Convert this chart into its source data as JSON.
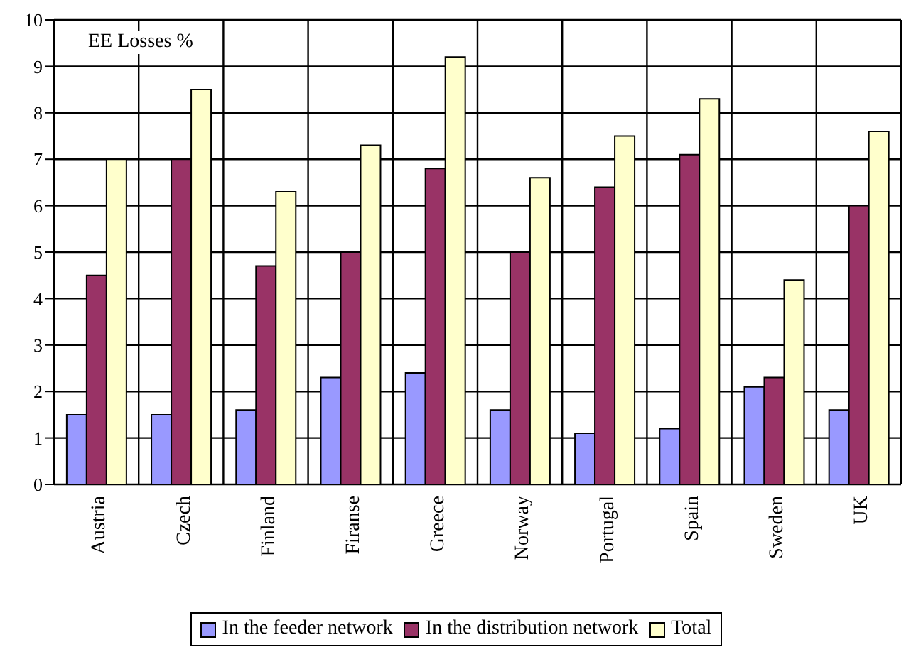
{
  "chart_data": {
    "type": "bar",
    "title": "EE Losses %",
    "categories": [
      "Austria",
      "Czech",
      "Finland",
      "Firanse",
      "Greece",
      "Norway",
      "Portugal",
      "Spain",
      "Sweden",
      "UK"
    ],
    "series": [
      {
        "name": "In the feeder network",
        "color": "#9999ff",
        "values": [
          1.5,
          1.5,
          1.6,
          2.3,
          2.4,
          1.6,
          1.1,
          1.2,
          2.1,
          1.6
        ]
      },
      {
        "name": "In the distribution network",
        "color": "#993366",
        "values": [
          4.5,
          7.0,
          4.7,
          5.0,
          6.8,
          5.0,
          6.4,
          7.1,
          2.3,
          6.0
        ]
      },
      {
        "name": "Total",
        "color": "#ffffcc",
        "values": [
          7.0,
          8.5,
          6.3,
          7.3,
          9.2,
          6.6,
          7.5,
          8.3,
          4.4,
          7.6
        ]
      }
    ],
    "ylim": [
      0,
      10
    ],
    "yticks": [
      0,
      1,
      2,
      3,
      4,
      5,
      6,
      7,
      8,
      9,
      10
    ],
    "grid": true,
    "legend": "bottom"
  }
}
